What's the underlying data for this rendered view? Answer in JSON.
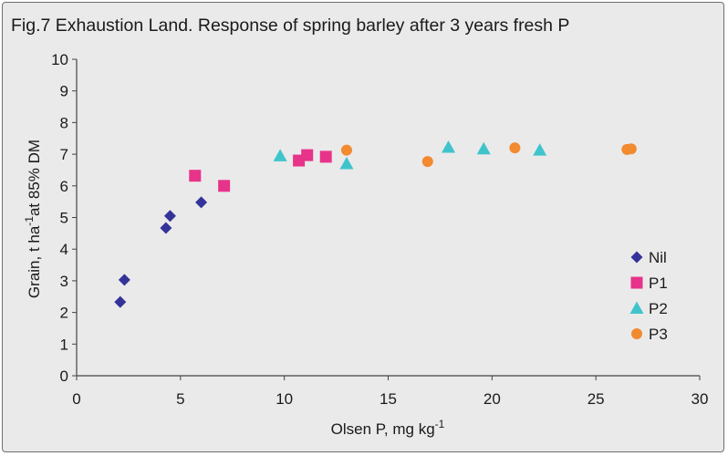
{
  "chart_data": {
    "type": "scatter",
    "title": "Fig.7 Exhaustion Land.  Response of spring barley after 3 years fresh P",
    "xlabel": {
      "main": "Olsen P,  mg kg",
      "sup": "-1"
    },
    "ylabel": {
      "part1": "Grain, t ha",
      "sup": "-1",
      "part2": "at 85% DM"
    },
    "xlim": [
      0,
      30
    ],
    "ylim": [
      0,
      10
    ],
    "xticks": [
      0,
      5,
      10,
      15,
      20,
      25,
      30
    ],
    "yticks": [
      0,
      1,
      2,
      3,
      4,
      5,
      6,
      7,
      8,
      9,
      10
    ],
    "grid": false,
    "legend_position": "right",
    "series": [
      {
        "name": "Nil",
        "marker": "diamond",
        "color": "#333399",
        "points": [
          [
            2.1,
            2.33
          ],
          [
            2.3,
            3.03
          ],
          [
            4.3,
            4.67
          ],
          [
            4.5,
            5.05
          ],
          [
            6.0,
            5.48
          ]
        ]
      },
      {
        "name": "P1",
        "marker": "square",
        "color": "#e8338a",
        "points": [
          [
            5.7,
            6.32
          ],
          [
            7.1,
            6.0
          ],
          [
            10.7,
            6.8
          ],
          [
            11.1,
            6.97
          ],
          [
            12.0,
            6.92
          ]
        ]
      },
      {
        "name": "P2",
        "marker": "triangle",
        "color": "#3fc4cc",
        "points": [
          [
            9.8,
            6.95
          ],
          [
            13.0,
            6.7
          ],
          [
            17.9,
            7.22
          ],
          [
            19.6,
            7.17
          ],
          [
            22.3,
            7.13
          ]
        ]
      },
      {
        "name": "P3",
        "marker": "circle",
        "color": "#f28a30",
        "points": [
          [
            13.0,
            7.13
          ],
          [
            16.9,
            6.77
          ],
          [
            21.1,
            7.2
          ],
          [
            26.5,
            7.15
          ],
          [
            26.7,
            7.17
          ]
        ]
      }
    ]
  }
}
